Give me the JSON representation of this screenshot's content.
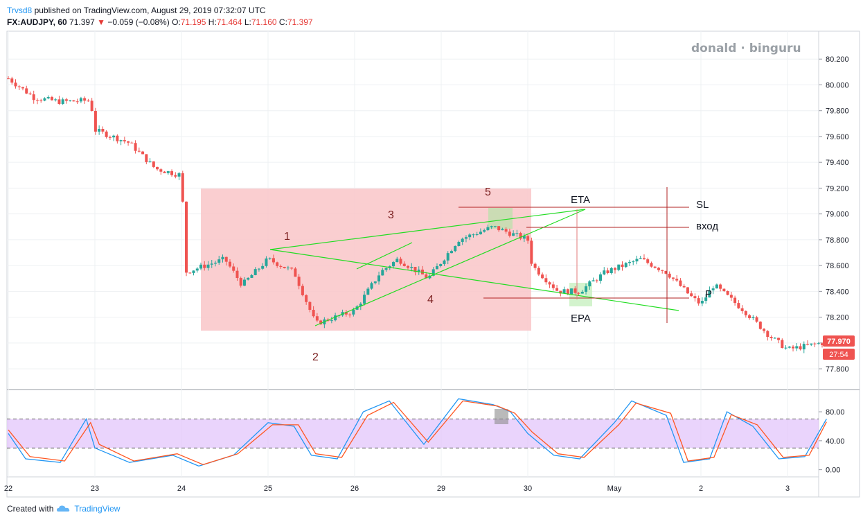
{
  "header": {
    "publisher": "Trvsd8",
    "published_text": "published on TradingView.com, August 29, 2019 07:32:07 UTC",
    "symbol": "FX:AUDJPY, 60",
    "last": "71.397",
    "change": "−0.059 (−0.08%)",
    "o_label": "O:",
    "o": "71.195",
    "h_label": "H:",
    "h": "71.464",
    "l_label": "L:",
    "l": "71.160",
    "c_label": "C:",
    "c": "71.397"
  },
  "watermark": "donald · binguru",
  "footer": {
    "created_with": "Created with",
    "brand": "TradingView"
  },
  "colors": {
    "up": "#26a69a",
    "down": "#ef5350",
    "trend": "#00e600",
    "level": "#b22222",
    "zone": "#f9c5c8",
    "stoch_band": "#e3c6fb"
  },
  "chart_data": [
    {
      "type": "line",
      "subtype": "candlestick",
      "x_tick_labels": [
        "22",
        "23",
        "24",
        "25",
        "26",
        "29",
        "30",
        "May",
        "2",
        "3"
      ],
      "y_tick_labels": [
        "80.200",
        "80.000",
        "79.800",
        "79.600",
        "79.400",
        "79.200",
        "79.000",
        "78.800",
        "78.600",
        "78.400",
        "78.200",
        "78.000",
        "77.800"
      ],
      "ylim": [
        77.65,
        80.4
      ],
      "price_path": [
        {
          "x": 0,
          "y": 80.05
        },
        {
          "x": 0.3,
          "y": 79.9
        },
        {
          "x": 0.6,
          "y": 79.87
        },
        {
          "x": 0.95,
          "y": 79.88
        },
        {
          "x": 1.0,
          "y": 79.65
        },
        {
          "x": 1.4,
          "y": 79.55
        },
        {
          "x": 1.7,
          "y": 79.35
        },
        {
          "x": 2.0,
          "y": 79.3
        },
        {
          "x": 2.05,
          "y": 78.55
        },
        {
          "x": 2.5,
          "y": 78.65
        },
        {
          "x": 2.7,
          "y": 78.45
        },
        {
          "x": 3.0,
          "y": 78.65
        },
        {
          "x": 3.3,
          "y": 78.55
        },
        {
          "x": 3.55,
          "y": 78.15
        },
        {
          "x": 4.0,
          "y": 78.25
        },
        {
          "x": 4.3,
          "y": 78.55
        },
        {
          "x": 4.5,
          "y": 78.65
        },
        {
          "x": 4.85,
          "y": 78.5
        },
        {
          "x": 5.2,
          "y": 78.8
        },
        {
          "x": 5.6,
          "y": 78.9
        },
        {
          "x": 6.0,
          "y": 78.8
        },
        {
          "x": 6.05,
          "y": 78.6
        },
        {
          "x": 6.35,
          "y": 78.4
        },
        {
          "x": 6.6,
          "y": 78.4
        },
        {
          "x": 6.9,
          "y": 78.55
        },
        {
          "x": 7.3,
          "y": 78.65
        },
        {
          "x": 7.6,
          "y": 78.55
        },
        {
          "x": 7.9,
          "y": 78.35
        },
        {
          "x": 8.0,
          "y": 78.3
        },
        {
          "x": 8.15,
          "y": 78.45
        },
        {
          "x": 8.5,
          "y": 78.25
        },
        {
          "x": 8.8,
          "y": 78.05
        },
        {
          "x": 9.0,
          "y": 77.95
        },
        {
          "x": 9.4,
          "y": 78.0
        }
      ],
      "price_badge": "77.970",
      "countdown_badge": "27:54",
      "annotations": {
        "waves": [
          "1",
          "2",
          "3",
          "4",
          "5"
        ],
        "eta": "ETA",
        "epa": "EPA",
        "sl": "SL",
        "entry": "вход",
        "p": "P",
        "sl_level": 79.01,
        "entry_level": 78.85,
        "p_level": 78.31
      }
    },
    {
      "type": "line",
      "subtype": "stochastic",
      "y_tick_labels": [
        "80.00",
        "40.00",
        "0.00"
      ],
      "ylim": [
        -8,
        105
      ],
      "band": [
        30,
        70
      ],
      "series": [
        {
          "color": "#2196f3",
          "points": [
            {
              "x": 0,
              "y": 50
            },
            {
              "x": 0.2,
              "y": 15
            },
            {
              "x": 0.6,
              "y": 10
            },
            {
              "x": 0.9,
              "y": 70
            },
            {
              "x": 1.0,
              "y": 30
            },
            {
              "x": 1.4,
              "y": 10
            },
            {
              "x": 1.9,
              "y": 20
            },
            {
              "x": 2.2,
              "y": 5
            },
            {
              "x": 2.6,
              "y": 20
            },
            {
              "x": 3.0,
              "y": 65
            },
            {
              "x": 3.3,
              "y": 60
            },
            {
              "x": 3.5,
              "y": 20
            },
            {
              "x": 3.8,
              "y": 15
            },
            {
              "x": 4.1,
              "y": 80
            },
            {
              "x": 4.4,
              "y": 95
            },
            {
              "x": 4.8,
              "y": 35
            },
            {
              "x": 5.2,
              "y": 98
            },
            {
              "x": 5.6,
              "y": 90
            },
            {
              "x": 5.8,
              "y": 80
            },
            {
              "x": 6.0,
              "y": 50
            },
            {
              "x": 6.3,
              "y": 20
            },
            {
              "x": 6.6,
              "y": 15
            },
            {
              "x": 7.0,
              "y": 65
            },
            {
              "x": 7.2,
              "y": 95
            },
            {
              "x": 7.6,
              "y": 75
            },
            {
              "x": 7.8,
              "y": 10
            },
            {
              "x": 8.1,
              "y": 15
            },
            {
              "x": 8.3,
              "y": 80
            },
            {
              "x": 8.6,
              "y": 60
            },
            {
              "x": 8.9,
              "y": 15
            },
            {
              "x": 9.2,
              "y": 18
            },
            {
              "x": 9.45,
              "y": 70
            }
          ]
        },
        {
          "color": "#ff5722",
          "points": [
            {
              "x": 0,
              "y": 55
            },
            {
              "x": 0.25,
              "y": 18
            },
            {
              "x": 0.65,
              "y": 12
            },
            {
              "x": 0.95,
              "y": 65
            },
            {
              "x": 1.05,
              "y": 35
            },
            {
              "x": 1.45,
              "y": 12
            },
            {
              "x": 1.95,
              "y": 22
            },
            {
              "x": 2.25,
              "y": 7
            },
            {
              "x": 2.65,
              "y": 22
            },
            {
              "x": 3.05,
              "y": 62
            },
            {
              "x": 3.35,
              "y": 62
            },
            {
              "x": 3.55,
              "y": 22
            },
            {
              "x": 3.85,
              "y": 17
            },
            {
              "x": 4.15,
              "y": 75
            },
            {
              "x": 4.45,
              "y": 93
            },
            {
              "x": 4.85,
              "y": 38
            },
            {
              "x": 5.25,
              "y": 95
            },
            {
              "x": 5.65,
              "y": 88
            },
            {
              "x": 5.85,
              "y": 78
            },
            {
              "x": 6.05,
              "y": 52
            },
            {
              "x": 6.35,
              "y": 22
            },
            {
              "x": 6.65,
              "y": 17
            },
            {
              "x": 7.05,
              "y": 62
            },
            {
              "x": 7.25,
              "y": 92
            },
            {
              "x": 7.65,
              "y": 78
            },
            {
              "x": 7.85,
              "y": 12
            },
            {
              "x": 8.15,
              "y": 17
            },
            {
              "x": 8.35,
              "y": 76
            },
            {
              "x": 8.65,
              "y": 62
            },
            {
              "x": 8.95,
              "y": 17
            },
            {
              "x": 9.25,
              "y": 20
            },
            {
              "x": 9.45,
              "y": 66
            }
          ]
        }
      ]
    }
  ]
}
